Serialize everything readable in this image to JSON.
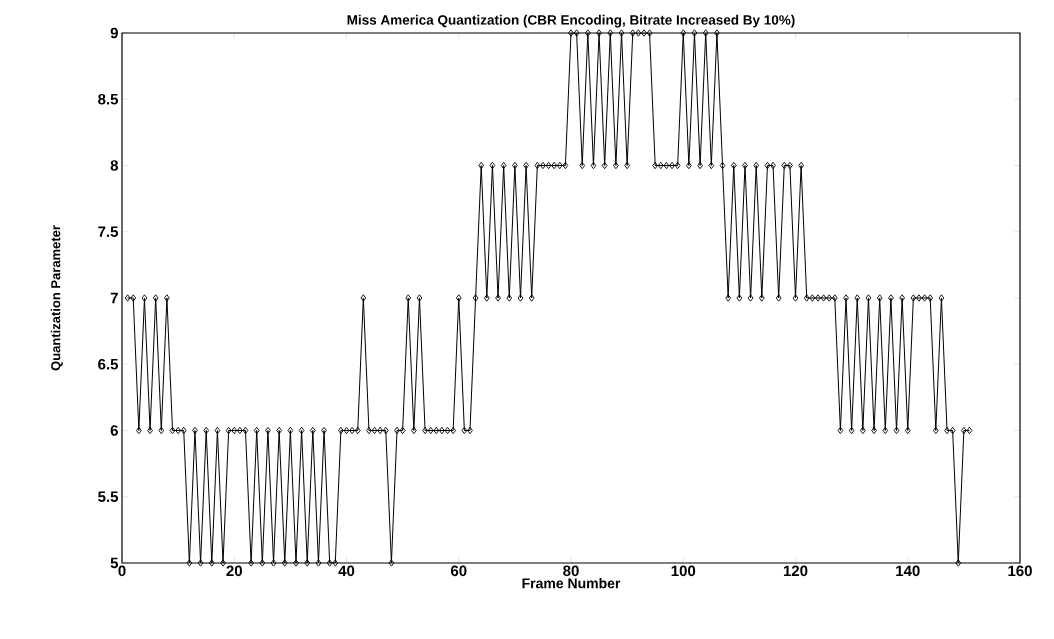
{
  "chart_data": {
    "type": "line",
    "title": "Miss America Quantization (CBR Encoding, Bitrate Increased By 10%)",
    "xlabel": "Frame Number",
    "ylabel": "Quantization Parameter",
    "x": [
      1,
      2,
      3,
      4,
      5,
      6,
      7,
      8,
      9,
      10,
      11,
      12,
      13,
      14,
      15,
      16,
      17,
      18,
      19,
      20,
      21,
      22,
      23,
      24,
      25,
      26,
      27,
      28,
      29,
      30,
      31,
      32,
      33,
      34,
      35,
      36,
      37,
      38,
      39,
      40,
      41,
      42,
      43,
      44,
      45,
      46,
      47,
      48,
      49,
      50,
      51,
      52,
      53,
      54,
      55,
      56,
      57,
      58,
      59,
      60,
      61,
      62,
      63,
      64,
      65,
      66,
      67,
      68,
      69,
      70,
      71,
      72,
      73,
      74,
      75,
      76,
      77,
      78,
      79,
      80,
      81,
      82,
      83,
      84,
      85,
      86,
      87,
      88,
      89,
      90,
      91,
      92,
      93,
      94,
      95,
      96,
      97,
      98,
      99,
      100,
      101,
      102,
      103,
      104,
      105,
      106,
      107,
      108,
      109,
      110,
      111,
      112,
      113,
      114,
      115,
      116,
      117,
      118,
      119,
      120,
      121,
      122,
      123,
      124,
      125,
      126,
      127,
      128,
      129,
      130,
      131,
      132,
      133,
      134,
      135,
      136,
      137,
      138,
      139,
      140,
      141,
      142,
      143,
      144,
      145,
      146,
      147,
      148,
      149,
      150,
      151
    ],
    "series": [
      {
        "color": "#000000",
        "values": [
          7,
          7,
          6,
          7,
          6,
          7,
          6,
          7,
          6,
          6,
          6,
          5,
          6,
          5,
          6,
          5,
          6,
          5,
          6,
          6,
          6,
          6,
          5,
          6,
          5,
          6,
          5,
          6,
          5,
          6,
          5,
          6,
          5,
          6,
          5,
          6,
          5,
          5,
          6,
          6,
          6,
          6,
          7,
          6,
          6,
          6,
          6,
          5,
          6,
          6,
          7,
          6,
          7,
          6,
          6,
          6,
          6,
          6,
          6,
          7,
          6,
          6,
          7,
          8,
          7,
          8,
          7,
          8,
          7,
          8,
          7,
          8,
          7,
          8,
          8,
          8,
          8,
          8,
          8,
          9,
          9,
          8,
          9,
          8,
          9,
          8,
          9,
          8,
          9,
          8,
          9,
          9,
          9,
          9,
          8,
          8,
          8,
          8,
          8,
          9,
          8,
          9,
          8,
          9,
          8,
          9,
          8,
          7,
          8,
          7,
          8,
          7,
          8,
          7,
          8,
          8,
          7,
          8,
          8,
          7,
          8,
          7,
          7,
          7,
          7,
          7,
          7,
          6,
          7,
          6,
          7,
          6,
          7,
          6,
          7,
          6,
          7,
          6,
          7,
          6,
          7,
          7,
          7,
          7,
          6,
          7,
          6,
          6,
          5,
          6,
          6
        ]
      }
    ],
    "xlim": [
      0,
      160
    ],
    "ylim": [
      5,
      9
    ],
    "xticks": [
      0,
      20,
      40,
      60,
      80,
      100,
      120,
      140,
      160
    ],
    "yticks": [
      5,
      5.5,
      6,
      6.5,
      7,
      7.5,
      8,
      8.5,
      9
    ],
    "marker": "diamond",
    "line_style": "solid",
    "grid": false
  }
}
